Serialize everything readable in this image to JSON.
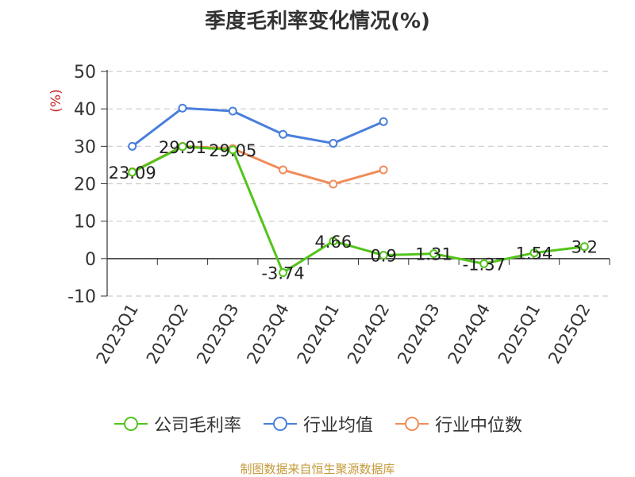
{
  "chart_data": {
    "type": "line",
    "title": "季度毛利率变化情况(%)",
    "ylabel": "(%)",
    "xlabel": "",
    "categories": [
      "2023Q1",
      "2023Q2",
      "2023Q3",
      "2023Q4",
      "2024Q1",
      "2024Q2",
      "2024Q3",
      "2024Q4",
      "2025Q1",
      "2025Q2"
    ],
    "ylim": [
      -10,
      50
    ],
    "yticks": [
      "50",
      "40",
      "30",
      "20",
      "10",
      "0",
      "-10"
    ],
    "grid": true,
    "legend_position": "bottom",
    "series": [
      {
        "name": "公司毛利率",
        "color": "#52c41a",
        "values": [
          23.09,
          29.91,
          29.05,
          -3.74,
          4.66,
          0.9,
          1.31,
          -1.37,
          1.54,
          3.2
        ],
        "labels": [
          "23.09",
          "29.91",
          "29.05",
          "-3.74",
          "4.66",
          "0.9",
          "1.31",
          "-1.37",
          "1.54",
          "3.2"
        ]
      },
      {
        "name": "行业均值",
        "color": "#4a7fdc",
        "values": [
          30.0,
          40.2,
          39.4,
          33.2,
          30.8,
          36.6,
          null,
          null,
          null,
          null
        ]
      },
      {
        "name": "行业中位数",
        "color": "#f08c5a",
        "values": [
          23.2,
          30.0,
          29.4,
          23.7,
          19.9,
          23.7,
          null,
          null,
          null,
          null
        ]
      }
    ]
  },
  "source_note": "制图数据来自恒生聚源数据库"
}
